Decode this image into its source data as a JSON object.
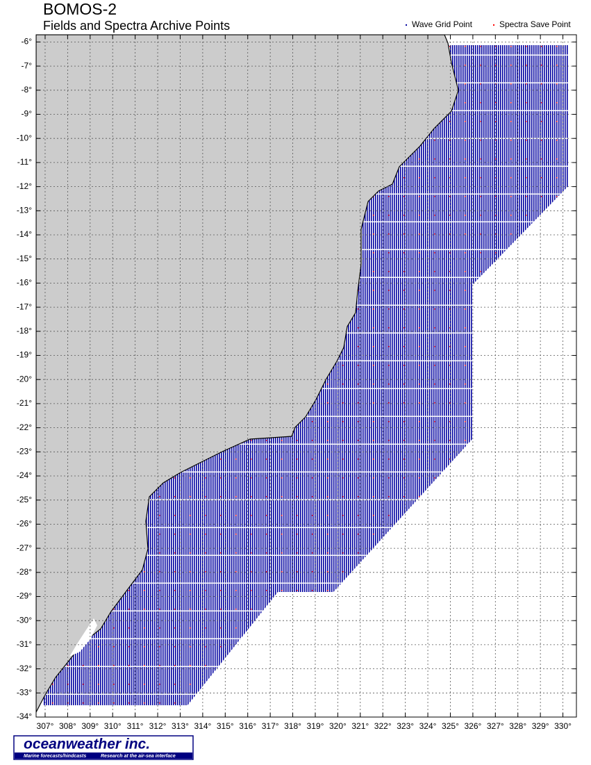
{
  "chart_data": {
    "type": "map",
    "title": "BOMOS-2",
    "subtitle": "Fields and Spectra Archive Points",
    "legend": [
      {
        "name": "Wave Grid Point",
        "color": "#0000a0"
      },
      {
        "name": "Spectra Save Point",
        "color": "#ff0000"
      }
    ],
    "xlim": [
      306.6,
      330.6
    ],
    "ylim": [
      -34,
      -5.7
    ],
    "xticks": [
      {
        "value": 307,
        "label": "307°"
      },
      {
        "value": 308,
        "label": "308°"
      },
      {
        "value": 309,
        "label": "309°"
      },
      {
        "value": 310,
        "label": "310°"
      },
      {
        "value": 311,
        "label": "311°"
      },
      {
        "value": 312,
        "label": "312°"
      },
      {
        "value": 313,
        "label": "313°"
      },
      {
        "value": 314,
        "label": "314°"
      },
      {
        "value": 315,
        "label": "315°"
      },
      {
        "value": 316,
        "label": "316°"
      },
      {
        "value": 317,
        "label": "317°"
      },
      {
        "value": 318,
        "label": "318°"
      },
      {
        "value": 319,
        "label": "319°"
      },
      {
        "value": 320,
        "label": "320°"
      },
      {
        "value": 321,
        "label": "321°"
      },
      {
        "value": 322,
        "label": "322°"
      },
      {
        "value": 323,
        "label": "323°"
      },
      {
        "value": 324,
        "label": "324°"
      },
      {
        "value": 325,
        "label": "325°"
      },
      {
        "value": 326,
        "label": "326°"
      },
      {
        "value": 327,
        "label": "327°"
      },
      {
        "value": 328,
        "label": "328°"
      },
      {
        "value": 329,
        "label": "329°"
      },
      {
        "value": 330,
        "label": "330°"
      }
    ],
    "yticks": [
      {
        "value": -6,
        "label": "-6°"
      },
      {
        "value": -7,
        "label": "-7°"
      },
      {
        "value": -8,
        "label": "-8°"
      },
      {
        "value": -9,
        "label": "-9°"
      },
      {
        "value": -10,
        "label": "-10°"
      },
      {
        "value": -11,
        "label": "-11°"
      },
      {
        "value": -12,
        "label": "-12°"
      },
      {
        "value": -13,
        "label": "-13°"
      },
      {
        "value": -14,
        "label": "-14°"
      },
      {
        "value": -15,
        "label": "-15°"
      },
      {
        "value": -16,
        "label": "-16°"
      },
      {
        "value": -17,
        "label": "-17°"
      },
      {
        "value": -18,
        "label": "-18°"
      },
      {
        "value": -19,
        "label": "-19°"
      },
      {
        "value": -20,
        "label": "-20°"
      },
      {
        "value": -21,
        "label": "-21°"
      },
      {
        "value": -22,
        "label": "-22°"
      },
      {
        "value": -23,
        "label": "-23°"
      },
      {
        "value": -24,
        "label": "-24°"
      },
      {
        "value": -25,
        "label": "-25°"
      },
      {
        "value": -26,
        "label": "-26°"
      },
      {
        "value": -27,
        "label": "-27°"
      },
      {
        "value": -28,
        "label": "-28°"
      },
      {
        "value": -29,
        "label": "-29°"
      },
      {
        "value": -30,
        "label": "-30°"
      },
      {
        "value": -31,
        "label": "-31°"
      },
      {
        "value": -32,
        "label": "-32°"
      },
      {
        "value": -33,
        "label": "-33°"
      },
      {
        "value": -34,
        "label": "-34°"
      }
    ],
    "grid": true
  },
  "logo": {
    "name": "oceanweather inc.",
    "tagline_left": "Marine forecasts/hindcasts",
    "tagline_right": "Research at the air-sea interface"
  }
}
